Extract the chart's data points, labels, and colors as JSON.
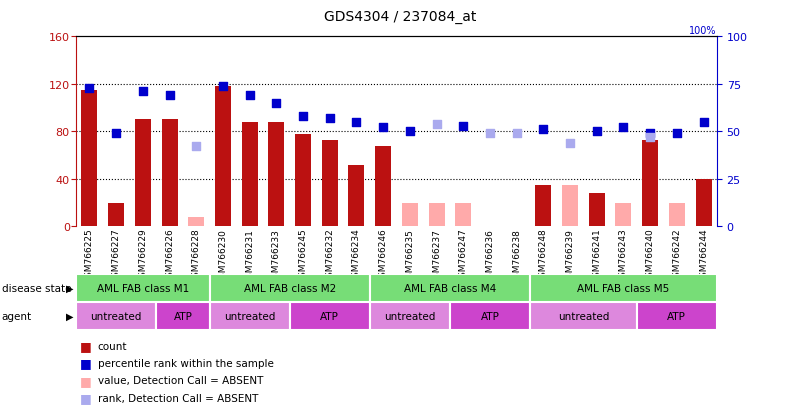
{
  "title": "GDS4304 / 237084_at",
  "samples": [
    "GSM766225",
    "GSM766227",
    "GSM766229",
    "GSM766226",
    "GSM766228",
    "GSM766230",
    "GSM766231",
    "GSM766233",
    "GSM766245",
    "GSM766232",
    "GSM766234",
    "GSM766246",
    "GSM766235",
    "GSM766237",
    "GSM766247",
    "GSM766236",
    "GSM766238",
    "GSM766248",
    "GSM766239",
    "GSM766241",
    "GSM766243",
    "GSM766240",
    "GSM766242",
    "GSM766244"
  ],
  "count": [
    115,
    20,
    90,
    90,
    null,
    118,
    88,
    88,
    78,
    73,
    52,
    68,
    null,
    null,
    null,
    null,
    null,
    35,
    null,
    28,
    null,
    73,
    null,
    40
  ],
  "count_absent": [
    null,
    null,
    null,
    null,
    8,
    null,
    null,
    null,
    null,
    null,
    null,
    null,
    20,
    20,
    20,
    null,
    null,
    null,
    35,
    null,
    20,
    null,
    20,
    null
  ],
  "percentile": [
    73,
    49,
    71,
    69,
    null,
    74,
    69,
    65,
    58,
    57,
    55,
    52,
    50,
    null,
    53,
    null,
    null,
    51,
    null,
    50,
    52,
    49,
    49,
    55
  ],
  "percentile_absent": [
    null,
    null,
    null,
    null,
    42,
    null,
    null,
    null,
    null,
    null,
    null,
    null,
    null,
    54,
    null,
    49,
    49,
    null,
    44,
    null,
    null,
    47,
    null,
    null
  ],
  "disease_state_groups": [
    {
      "label": "AML FAB class M1",
      "start": 0,
      "end": 5
    },
    {
      "label": "AML FAB class M2",
      "start": 5,
      "end": 11
    },
    {
      "label": "AML FAB class M4",
      "start": 11,
      "end": 17
    },
    {
      "label": "AML FAB class M5",
      "start": 17,
      "end": 24
    }
  ],
  "agent_groups": [
    {
      "label": "untreated",
      "start": 0,
      "end": 3,
      "color": "#dd88dd"
    },
    {
      "label": "ATP",
      "start": 3,
      "end": 5,
      "color": "#cc44cc"
    },
    {
      "label": "untreated",
      "start": 5,
      "end": 8,
      "color": "#dd88dd"
    },
    {
      "label": "ATP",
      "start": 8,
      "end": 11,
      "color": "#cc44cc"
    },
    {
      "label": "untreated",
      "start": 11,
      "end": 14,
      "color": "#dd88dd"
    },
    {
      "label": "ATP",
      "start": 14,
      "end": 17,
      "color": "#cc44cc"
    },
    {
      "label": "untreated",
      "start": 17,
      "end": 21,
      "color": "#dd88dd"
    },
    {
      "label": "ATP",
      "start": 21,
      "end": 24,
      "color": "#cc44cc"
    }
  ],
  "ylim_left": [
    0,
    160
  ],
  "ylim_right": [
    0,
    100
  ],
  "yticks_left": [
    0,
    40,
    80,
    120,
    160
  ],
  "yticks_right": [
    0,
    25,
    50,
    75,
    100
  ],
  "bar_color_present": "#bb1111",
  "bar_color_absent": "#ffaaaa",
  "dot_color_present": "#0000cc",
  "dot_color_absent": "#aaaaee",
  "disease_state_color": "#77dd77",
  "agent_untreated_color": "#dd88dd",
  "agent_atp_color": "#cc44cc",
  "background_color": "#ffffff",
  "axis_bg_color": "#ffffff",
  "grid_color": "#000000",
  "label_row_bg": "#cccccc"
}
